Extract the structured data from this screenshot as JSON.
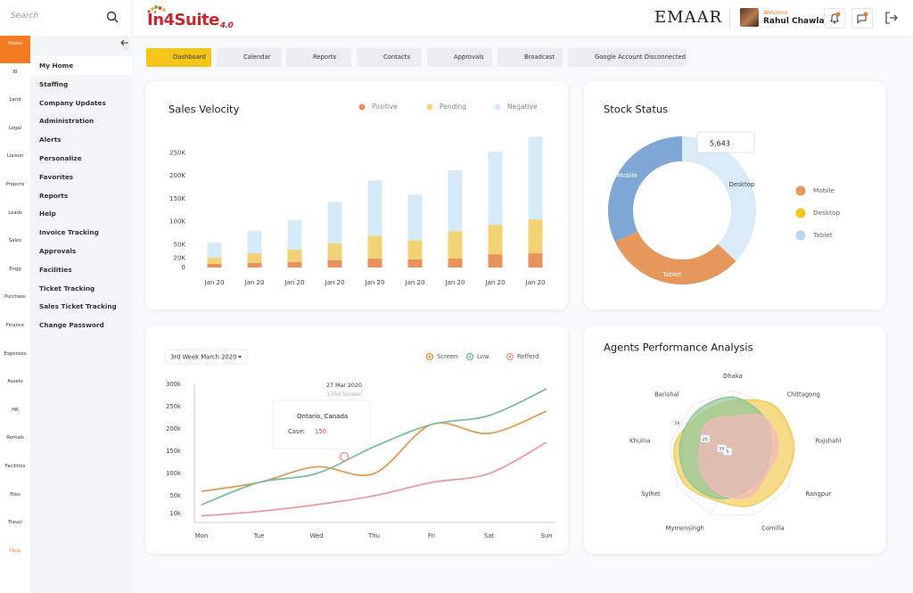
{
  "search_placeholder": "Search",
  "logo": {
    "name": "In4Suite",
    "version": "4.0"
  },
  "header": {
    "company": "EMAAR",
    "welcome": "Welcome",
    "user": "Rahul Chawla"
  },
  "modules": [
    "Home",
    "BI",
    "Land",
    "Legal",
    "Liaison",
    "Projects",
    "Leads",
    "Sales",
    "Engg",
    "Purchase",
    "Finance",
    "Expenses",
    "Assets",
    "HR",
    "Rentals",
    "Facilities",
    "Files",
    "Travel",
    "Help"
  ],
  "menu": [
    "My Home",
    "Staffing",
    "Company Updates",
    "Administration",
    "Alerts",
    "Personalize",
    "Favorites",
    "Reports",
    "Help",
    "Invoice Tracking",
    "Approvals",
    "Facilities",
    "Ticket Tracking",
    "Sales Ticket Tracking",
    "Change Password"
  ],
  "tabs": [
    "Dashboard",
    "Calendar",
    "Reports",
    "Contacts",
    "Approvals",
    "Broadcast",
    "Google Account Disconnected"
  ],
  "chart_data": [
    {
      "type": "bar",
      "stacked": true,
      "title": "Sales Velocity",
      "categories": [
        "Jan 20",
        "Jan 20",
        "Jan 20",
        "Jan 20",
        "Jan 20",
        "Jan 20",
        "Jan 20",
        "Jan 20",
        "Jan 20"
      ],
      "series": [
        {
          "name": "Positive",
          "color": "#e8935e",
          "values": [
            8000,
            10000,
            12000,
            16000,
            20000,
            18000,
            20000,
            29000,
            31000
          ]
        },
        {
          "name": "Pending",
          "color": "#f3d175",
          "values": [
            14000,
            21000,
            27000,
            37000,
            49000,
            41000,
            59000,
            64000,
            74000
          ]
        },
        {
          "name": "Negative",
          "color": "#d5ebf8",
          "values": [
            33000,
            49000,
            64000,
            90000,
            121000,
            100000,
            133000,
            160000,
            180000
          ]
        }
      ],
      "ylim": [
        0,
        290000
      ],
      "yticks": [
        0,
        {
          "value": 20000,
          "label": "20K"
        },
        {
          "value": 50000,
          "label": "50K"
        },
        {
          "value": 100000,
          "label": "100K"
        },
        {
          "value": 150000,
          "label": "150K"
        },
        {
          "value": 200000,
          "label": "200K"
        },
        {
          "value": 250000,
          "label": "250K"
        }
      ]
    },
    {
      "type": "pie",
      "donut": true,
      "title": "Stock Status",
      "categories": [
        "Mobile",
        "Desktop",
        "Tablet"
      ],
      "values": [
        32,
        37,
        31
      ],
      "colors": [
        "#7ea7d6",
        "#dbeaf7",
        "#e6985c"
      ],
      "legend_colors": [
        "#e6985c",
        "#f5c518",
        "#bcd6ef"
      ],
      "tooltip": {
        "value": 5643,
        "label": "5,643"
      }
    },
    {
      "type": "line",
      "smooth": true,
      "dropdown": "3rd Week March 2020",
      "categories": [
        "Mon",
        "Tue",
        "Wed",
        "Thu",
        "Fri",
        "Sat",
        "Sun"
      ],
      "series": [
        {
          "name": "Screen",
          "color": "#e39b55",
          "values": [
            60000,
            80000,
            115000,
            100000,
            210000,
            190000,
            240000
          ]
        },
        {
          "name": "Low",
          "color": "#7cbfa0",
          "values": [
            30000,
            80000,
            100000,
            160000,
            210000,
            230000,
            290000
          ]
        },
        {
          "name": "Refferd",
          "color": "#ee9a9a",
          "values": [
            5000,
            15000,
            30000,
            50000,
            80000,
            100000,
            170000
          ]
        }
      ],
      "ylim": [
        0,
        300000
      ],
      "yticks": [
        {
          "value": 10000,
          "label": "10k"
        },
        {
          "value": 50000,
          "label": "50k"
        },
        {
          "value": 100000,
          "label": "100k"
        },
        {
          "value": 150000,
          "label": "150k"
        },
        {
          "value": 200000,
          "label": "200k"
        },
        {
          "value": 250000,
          "label": "250k"
        },
        {
          "value": 300000,
          "label": "300k"
        }
      ],
      "tooltip": {
        "date": "27 Mar 2020",
        "subtitle": "1750 Screen",
        "title": "Ontario, Canada",
        "field": "Case:",
        "value": 150
      }
    },
    {
      "type": "radar",
      "title": "Agents Performance Analysis",
      "categories": [
        "Dhaka",
        "Chittagong",
        "Rajshahi",
        "Rangpur",
        "Comilla",
        "Mymensingh",
        "Sylhet",
        "Khulna",
        "Barishal"
      ],
      "rlim": [
        0,
        50
      ],
      "rticks": [
        5,
        10,
        25,
        50
      ],
      "series": [
        {
          "color": "#f2cc55",
          "values": [
            42,
            50,
            48,
            44,
            42,
            38,
            44,
            46,
            40
          ]
        },
        {
          "color": "#8fc89a",
          "values": [
            45,
            38,
            30,
            28,
            30,
            36,
            40,
            42,
            44
          ]
        },
        {
          "color": "#f4b8bd",
          "values": [
            30,
            38,
            36,
            30,
            35,
            32,
            28,
            26,
            32
          ]
        }
      ]
    }
  ]
}
